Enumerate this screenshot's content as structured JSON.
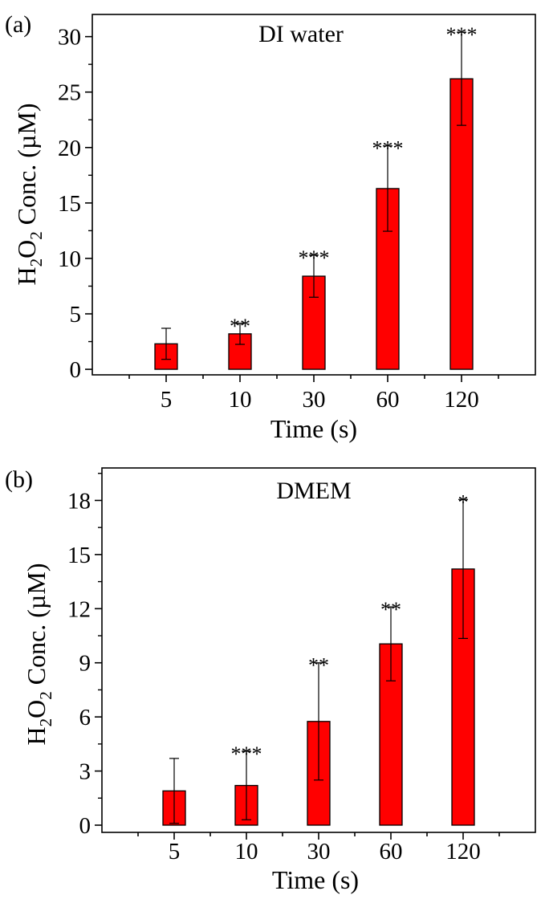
{
  "chart_data": [
    {
      "type": "bar",
      "panel_label": "(a)",
      "title": "DI water",
      "xlabel": "Time (s)",
      "ylabel": {
        "prefix": "H",
        "sub1": "2",
        "mid": "O",
        "sub2": "2",
        "suffix": " Conc. (µM)"
      },
      "categories": [
        "5",
        "10",
        "30",
        "60",
        "120"
      ],
      "values": [
        2.3,
        3.2,
        8.4,
        16.3,
        26.2
      ],
      "errors": [
        1.4,
        0.95,
        1.9,
        3.85,
        4.2
      ],
      "significance": [
        "",
        "**",
        "***",
        "***",
        "***"
      ],
      "ylim": [
        -0.5,
        32
      ],
      "yticks": [
        0,
        5,
        10,
        15,
        20,
        25,
        30
      ],
      "yticklabels": [
        "0",
        "5",
        "10",
        "15",
        "20",
        "25",
        "30"
      ],
      "bar_color": "#ff0000",
      "grid": false
    },
    {
      "type": "bar",
      "panel_label": "(b)",
      "title": "DMEM",
      "xlabel": "Time (s)",
      "ylabel": {
        "prefix": "H",
        "sub1": "2",
        "mid": "O",
        "sub2": "2",
        "suffix": " Conc. (µM)"
      },
      "categories": [
        "5",
        "10",
        "30",
        "60",
        "120"
      ],
      "values": [
        1.9,
        2.2,
        5.75,
        10.05,
        14.2
      ],
      "errors": [
        1.8,
        1.9,
        3.25,
        2.05,
        3.85
      ],
      "significance": [
        "",
        "***",
        "**",
        "**",
        "*"
      ],
      "ylim": [
        -0.4,
        19.8
      ],
      "yticks": [
        0,
        3,
        6,
        9,
        12,
        15,
        18
      ],
      "yticklabels": [
        "0",
        "3",
        "6",
        "9",
        "12",
        "15",
        "18"
      ],
      "bar_color": "#ff0000",
      "grid": false
    }
  ]
}
